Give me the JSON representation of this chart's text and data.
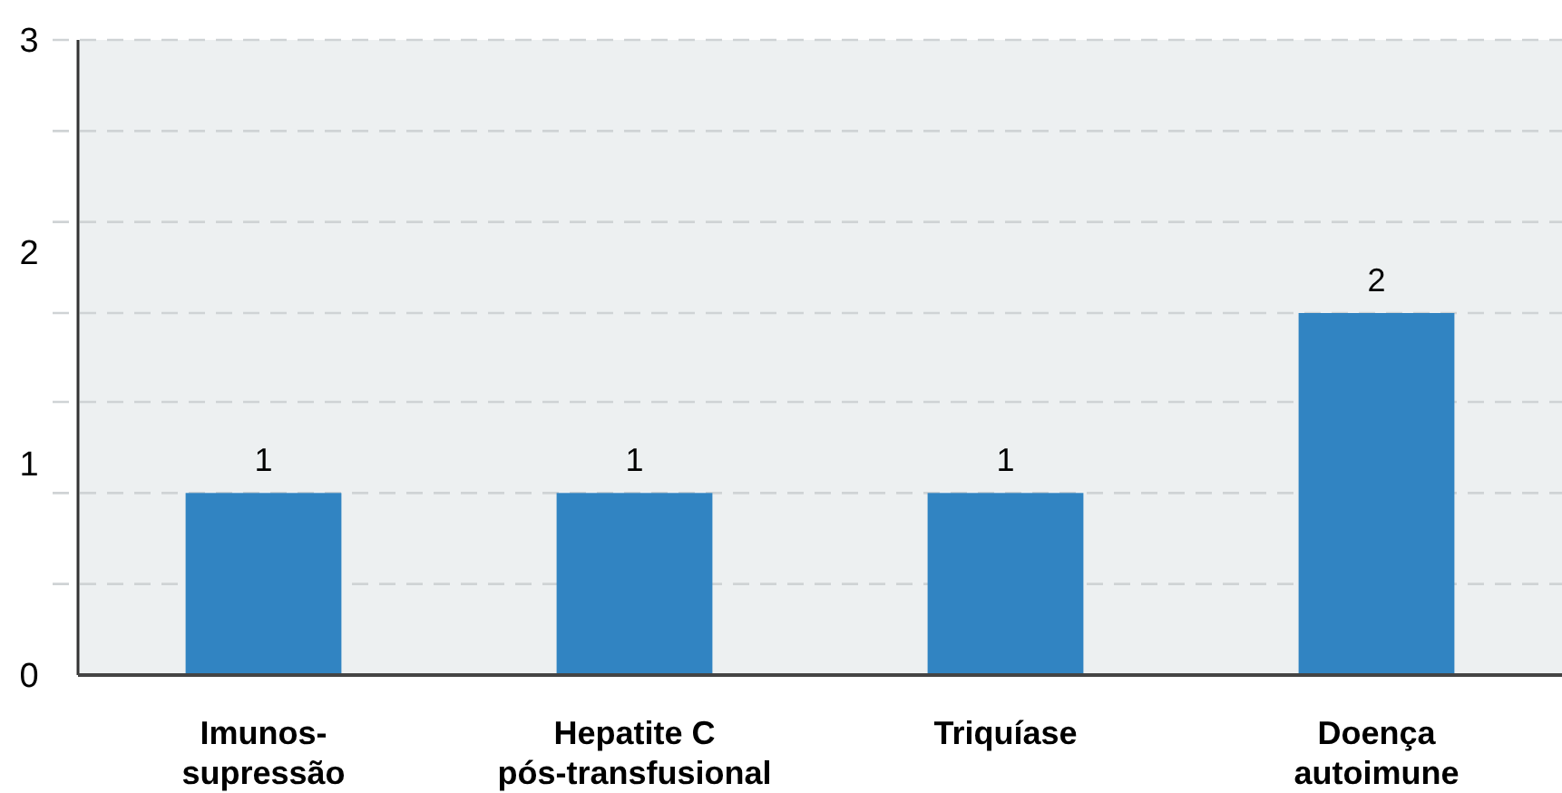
{
  "chart_data": {
    "type": "bar",
    "categories": [
      "Imunos-\nsupressão",
      "Hepatite C\npós-transfusional",
      "Triquíase",
      "Doença\nautoimune"
    ],
    "values": [
      0.86,
      0.86,
      0.86,
      1.71
    ],
    "value_labels": [
      "1",
      "1",
      "1",
      "2"
    ],
    "color": "#3184c2",
    "ylim": [
      0,
      3
    ],
    "yticks": [
      {
        "value": 0,
        "label": "0"
      },
      {
        "value": 0.43,
        "label": null
      },
      {
        "value": 0.86,
        "label": null
      },
      {
        "value": 1,
        "label": "1"
      },
      {
        "value": 1.29,
        "label": null
      },
      {
        "value": 1.71,
        "label": null
      },
      {
        "value": 2,
        "label": "2"
      },
      {
        "value": 2.14,
        "label": null
      },
      {
        "value": 2.57,
        "label": null
      },
      {
        "value": 3,
        "label": "3"
      }
    ],
    "grid": "y"
  }
}
